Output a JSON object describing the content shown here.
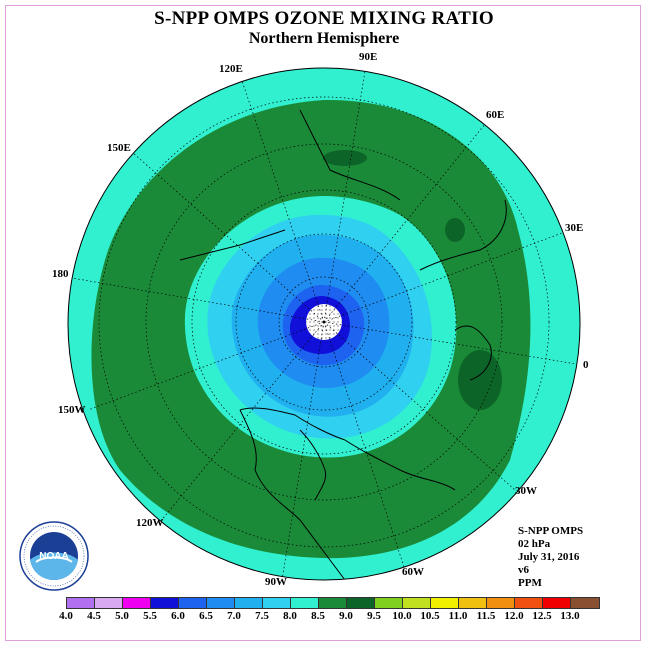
{
  "header": {
    "title": "S-NPP OMPS OZONE MIXING RATIO",
    "subtitle": "Northern Hemisphere"
  },
  "longitude_labels": {
    "lon_90e": "90E",
    "lon_60e": "60E",
    "lon_30e": "30E",
    "lon_0": "0",
    "lon_30w": "30W",
    "lon_60w": "60W",
    "lon_90w": "90W",
    "lon_120w": "120W",
    "lon_150w": "150W",
    "lon_180": "180",
    "lon_150e": "150E",
    "lon_120e": "120E"
  },
  "info": {
    "instrument": "S-NPP OMPS",
    "pressure_level": "02 hPa",
    "date": "July 31, 2016",
    "version": "v6",
    "units": "PPM"
  },
  "logo": {
    "name": "NOAA",
    "ring_text": "NATIONAL OCEANIC AND ATMOSPHERIC ADMINISTRATION · U.S. DEPARTMENT OF COMMERCE"
  },
  "colorbar": {
    "labels": [
      "4.0",
      "4.5",
      "5.0",
      "5.5",
      "6.0",
      "6.5",
      "7.0",
      "7.5",
      "8.0",
      "8.5",
      "9.0",
      "9.5",
      "10.0",
      "10.5",
      "11.0",
      "11.5",
      "12.0",
      "12.5",
      "13.0"
    ],
    "colors": [
      "#b070f0",
      "#d8a8f0",
      "#f000f0",
      "#1010d8",
      "#1e62f0",
      "#1e8cf0",
      "#20b0f0",
      "#30d0f0",
      "#30f0d0",
      "#1a8a38",
      "#0c6428",
      "#80d020",
      "#c0e020",
      "#f0f000",
      "#f0c010",
      "#f09010",
      "#f05010",
      "#f00000",
      "#885030"
    ]
  },
  "map_colors": {
    "very_high_ring": "#0c6428",
    "high_ring": "#1a8a38",
    "mid_ring": "#30f0d0",
    "low_ring": "#30d0f0",
    "lower_ring": "#20b0f0",
    "lowest_ring": "#1e8cf0",
    "core": "#1e62f0",
    "center": "#1010d8",
    "no_data": "#ffffff"
  }
}
